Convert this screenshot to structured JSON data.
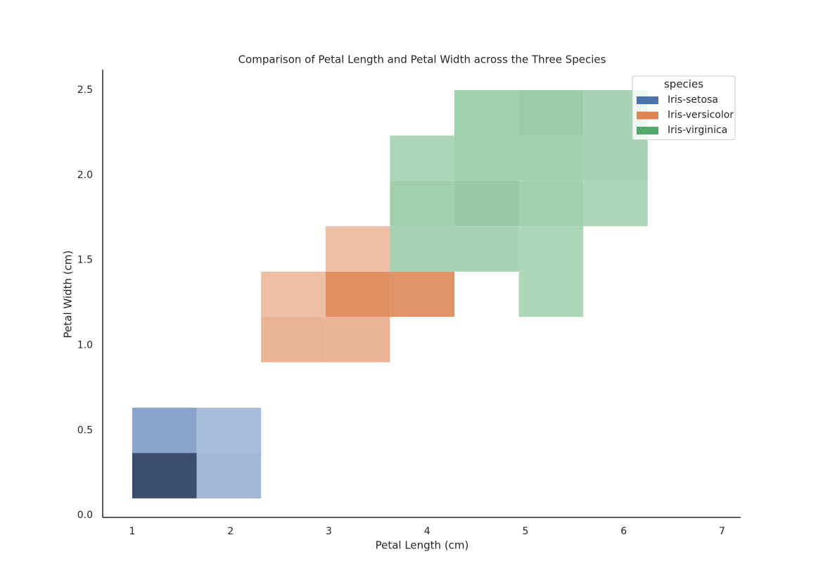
{
  "chart_data": {
    "type": "histogram2d",
    "title": "Comparison of Petal Length and Petal Width across the Three Species",
    "x_label": "Petal Length (cm)",
    "y_label": "Petal Width (cm)",
    "xbins": [
      1.0,
      1.656,
      2.311,
      2.967,
      3.622,
      4.278,
      4.933,
      5.589,
      6.244,
      6.9
    ],
    "ybins": [
      0.1,
      0.367,
      0.633,
      0.9,
      1.167,
      1.433,
      1.7,
      1.967,
      2.233,
      2.5
    ],
    "xlim": [
      0.7,
      7.19
    ],
    "ylim": [
      -0.012,
      2.62
    ],
    "xticks": [
      1,
      2,
      3,
      4,
      5,
      6,
      7
    ],
    "yticks": [
      {
        "value": 0,
        "label": "0.0"
      },
      0.5,
      {
        "value": 1,
        "label": "1.0"
      },
      1.5,
      {
        "value": 2,
        "label": "2.0"
      },
      2.5
    ],
    "legend_title": "species",
    "legend": "upper right",
    "series": [
      {
        "name": "Iris-setosa",
        "color": "#4c72b0",
        "counts": [
          [
            38,
            3,
            0,
            0,
            0,
            0,
            0,
            0,
            0
          ],
          [
            7,
            2,
            0,
            0,
            0,
            0,
            0,
            0,
            0
          ],
          [
            0,
            0,
            0,
            0,
            0,
            0,
            0,
            0,
            0
          ],
          [
            0,
            0,
            0,
            0,
            0,
            0,
            0,
            0,
            0
          ],
          [
            0,
            0,
            0,
            0,
            0,
            0,
            0,
            0,
            0
          ],
          [
            0,
            0,
            0,
            0,
            0,
            0,
            0,
            0,
            0
          ],
          [
            0,
            0,
            0,
            0,
            0,
            0,
            0,
            0,
            0
          ],
          [
            0,
            0,
            0,
            0,
            0,
            0,
            0,
            0,
            0
          ],
          [
            0,
            0,
            0,
            0,
            0,
            0,
            0,
            0,
            0
          ]
        ]
      },
      {
        "name": "Iris-versicolor",
        "color": "#dd8452",
        "counts": [
          [
            0,
            0,
            0,
            0,
            0,
            0,
            0,
            0,
            0
          ],
          [
            0,
            0,
            0,
            0,
            0,
            0,
            0,
            0,
            0
          ],
          [
            0,
            0,
            0,
            0,
            0,
            0,
            0,
            0,
            0
          ],
          [
            0,
            0,
            6,
            6,
            0,
            0,
            0,
            0,
            0
          ],
          [
            0,
            0,
            3,
            15,
            14,
            0,
            0,
            0,
            0
          ],
          [
            0,
            0,
            0,
            3,
            0,
            0,
            0,
            0,
            0
          ],
          [
            0,
            0,
            0,
            0,
            0,
            0,
            0,
            0,
            0
          ],
          [
            0,
            0,
            0,
            0,
            0,
            0,
            0,
            0,
            0
          ],
          [
            0,
            0,
            0,
            0,
            0,
            0,
            0,
            0,
            0
          ]
        ]
      },
      {
        "name": "Iris-virginica",
        "color": "#55a868",
        "counts": [
          [
            0,
            0,
            0,
            0,
            0,
            0,
            0,
            0,
            0
          ],
          [
            0,
            0,
            0,
            0,
            0,
            0,
            0,
            0,
            0
          ],
          [
            0,
            0,
            0,
            0,
            0,
            0,
            0,
            0,
            0
          ],
          [
            0,
            0,
            0,
            0,
            0,
            0,
            0,
            0,
            0
          ],
          [
            0,
            0,
            0,
            0,
            0,
            0,
            2,
            0,
            0
          ],
          [
            0,
            0,
            0,
            0,
            3,
            3,
            2,
            0,
            0
          ],
          [
            0,
            0,
            0,
            0,
            4,
            6,
            4,
            2,
            0
          ],
          [
            0,
            0,
            0,
            0,
            2,
            4,
            4,
            3,
            0
          ],
          [
            0,
            0,
            0,
            0,
            0,
            4,
            5,
            3,
            0
          ]
        ]
      }
    ]
  }
}
